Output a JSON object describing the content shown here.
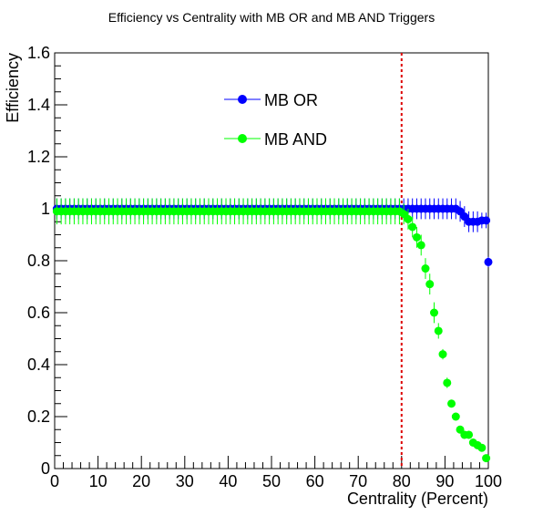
{
  "chart_data": {
    "type": "scatter",
    "title": "Efficiency vs Centrality with MB OR and MB AND Triggers",
    "xlabel": "Centrality (Percent)",
    "ylabel": "Efficiency",
    "xlim": [
      0,
      100
    ],
    "ylim": [
      0,
      1.6
    ],
    "x_ticks": [
      "0",
      "10",
      "20",
      "30",
      "40",
      "50",
      "60",
      "70",
      "80",
      "90",
      "100"
    ],
    "y_ticks": [
      "0",
      "0.2",
      "0.4",
      "0.6",
      "0.8",
      "1",
      "1.2",
      "1.4",
      "1.6"
    ],
    "grid": false,
    "legend_position": "top-center",
    "reference_line": {
      "x": 80,
      "color": "#dd0000",
      "style": "dotted"
    },
    "series": [
      {
        "name": "MB OR",
        "color": "#0000ff",
        "points": [
          [
            0.5,
            1.0,
            0.04
          ],
          [
            1.5,
            1.0,
            0.04
          ],
          [
            2.5,
            1.0,
            0.04
          ],
          [
            3.5,
            1.0,
            0.04
          ],
          [
            4.5,
            1.0,
            0.04
          ],
          [
            5.5,
            1.0,
            0.04
          ],
          [
            6.5,
            1.0,
            0.04
          ],
          [
            7.5,
            1.0,
            0.04
          ],
          [
            8.5,
            1.0,
            0.04
          ],
          [
            9.5,
            1.0,
            0.04
          ],
          [
            10.5,
            1.0,
            0.04
          ],
          [
            11.5,
            1.0,
            0.04
          ],
          [
            12.5,
            1.0,
            0.04
          ],
          [
            13.5,
            1.0,
            0.04
          ],
          [
            14.5,
            1.0,
            0.04
          ],
          [
            15.5,
            1.0,
            0.04
          ],
          [
            16.5,
            1.0,
            0.04
          ],
          [
            17.5,
            1.0,
            0.04
          ],
          [
            18.5,
            1.0,
            0.04
          ],
          [
            19.5,
            1.0,
            0.04
          ],
          [
            20.5,
            1.0,
            0.04
          ],
          [
            21.5,
            1.0,
            0.04
          ],
          [
            22.5,
            1.0,
            0.04
          ],
          [
            23.5,
            1.0,
            0.04
          ],
          [
            24.5,
            1.0,
            0.04
          ],
          [
            25.5,
            1.0,
            0.04
          ],
          [
            26.5,
            1.0,
            0.04
          ],
          [
            27.5,
            1.0,
            0.04
          ],
          [
            28.5,
            1.0,
            0.04
          ],
          [
            29.5,
            1.0,
            0.04
          ],
          [
            30.5,
            1.0,
            0.04
          ],
          [
            31.5,
            1.0,
            0.04
          ],
          [
            32.5,
            1.0,
            0.04
          ],
          [
            33.5,
            1.0,
            0.04
          ],
          [
            34.5,
            1.0,
            0.04
          ],
          [
            35.5,
            1.0,
            0.04
          ],
          [
            36.5,
            1.0,
            0.04
          ],
          [
            37.5,
            1.0,
            0.04
          ],
          [
            38.5,
            1.0,
            0.04
          ],
          [
            39.5,
            1.0,
            0.04
          ],
          [
            40.5,
            1.0,
            0.04
          ],
          [
            41.5,
            1.0,
            0.04
          ],
          [
            42.5,
            1.0,
            0.04
          ],
          [
            43.5,
            1.0,
            0.04
          ],
          [
            44.5,
            1.0,
            0.04
          ],
          [
            45.5,
            1.0,
            0.04
          ],
          [
            46.5,
            1.0,
            0.04
          ],
          [
            47.5,
            1.0,
            0.04
          ],
          [
            48.5,
            1.0,
            0.04
          ],
          [
            49.5,
            1.0,
            0.04
          ],
          [
            50.5,
            1.0,
            0.04
          ],
          [
            51.5,
            1.0,
            0.04
          ],
          [
            52.5,
            1.0,
            0.04
          ],
          [
            53.5,
            1.0,
            0.04
          ],
          [
            54.5,
            1.0,
            0.04
          ],
          [
            55.5,
            1.0,
            0.04
          ],
          [
            56.5,
            1.0,
            0.04
          ],
          [
            57.5,
            1.0,
            0.04
          ],
          [
            58.5,
            1.0,
            0.04
          ],
          [
            59.5,
            1.0,
            0.04
          ],
          [
            60.5,
            1.0,
            0.04
          ],
          [
            61.5,
            1.0,
            0.04
          ],
          [
            62.5,
            1.0,
            0.04
          ],
          [
            63.5,
            1.0,
            0.04
          ],
          [
            64.5,
            1.0,
            0.04
          ],
          [
            65.5,
            1.0,
            0.04
          ],
          [
            66.5,
            1.0,
            0.04
          ],
          [
            67.5,
            1.0,
            0.04
          ],
          [
            68.5,
            1.0,
            0.04
          ],
          [
            69.5,
            1.0,
            0.04
          ],
          [
            70.5,
            1.0,
            0.04
          ],
          [
            71.5,
            1.0,
            0.04
          ],
          [
            72.5,
            1.0,
            0.04
          ],
          [
            73.5,
            1.0,
            0.04
          ],
          [
            74.5,
            1.0,
            0.04
          ],
          [
            75.5,
            1.0,
            0.04
          ],
          [
            76.5,
            1.0,
            0.04
          ],
          [
            77.5,
            1.0,
            0.04
          ],
          [
            78.5,
            1.0,
            0.04
          ],
          [
            79.5,
            1.0,
            0.04
          ],
          [
            80.5,
            1.0,
            0.04
          ],
          [
            81.5,
            1.0,
            0.04
          ],
          [
            82.5,
            1.0,
            0.04
          ],
          [
            83.5,
            1.0,
            0.04
          ],
          [
            84.5,
            1.0,
            0.04
          ],
          [
            85.5,
            1.0,
            0.04
          ],
          [
            86.5,
            1.0,
            0.04
          ],
          [
            87.5,
            1.0,
            0.04
          ],
          [
            88.5,
            1.0,
            0.04
          ],
          [
            89.5,
            1.0,
            0.04
          ],
          [
            90.5,
            1.0,
            0.04
          ],
          [
            91.5,
            1.0,
            0.04
          ],
          [
            92.5,
            1.0,
            0.04
          ],
          [
            93.5,
            0.99,
            0.04
          ],
          [
            94.5,
            0.97,
            0.04
          ],
          [
            95.5,
            0.95,
            0.04
          ],
          [
            96.5,
            0.95,
            0.04
          ],
          [
            97.5,
            0.95,
            0.04
          ],
          [
            98.5,
            0.955,
            0.03
          ],
          [
            99.5,
            0.955,
            0.03
          ],
          [
            100,
            0.795,
            0.02
          ]
        ]
      },
      {
        "name": "MB AND",
        "color": "#00ff00",
        "points": [
          [
            0.5,
            0.99,
            0.05
          ],
          [
            1.5,
            0.99,
            0.05
          ],
          [
            2.5,
            0.99,
            0.05
          ],
          [
            3.5,
            0.99,
            0.05
          ],
          [
            4.5,
            0.99,
            0.05
          ],
          [
            5.5,
            0.99,
            0.05
          ],
          [
            6.5,
            0.99,
            0.05
          ],
          [
            7.5,
            0.99,
            0.05
          ],
          [
            8.5,
            0.99,
            0.05
          ],
          [
            9.5,
            0.99,
            0.05
          ],
          [
            10.5,
            0.99,
            0.05
          ],
          [
            11.5,
            0.99,
            0.05
          ],
          [
            12.5,
            0.99,
            0.05
          ],
          [
            13.5,
            0.99,
            0.05
          ],
          [
            14.5,
            0.99,
            0.05
          ],
          [
            15.5,
            0.99,
            0.05
          ],
          [
            16.5,
            0.99,
            0.05
          ],
          [
            17.5,
            0.99,
            0.05
          ],
          [
            18.5,
            0.99,
            0.05
          ],
          [
            19.5,
            0.99,
            0.05
          ],
          [
            20.5,
            0.99,
            0.05
          ],
          [
            21.5,
            0.99,
            0.05
          ],
          [
            22.5,
            0.99,
            0.05
          ],
          [
            23.5,
            0.99,
            0.05
          ],
          [
            24.5,
            0.99,
            0.05
          ],
          [
            25.5,
            0.99,
            0.05
          ],
          [
            26.5,
            0.99,
            0.05
          ],
          [
            27.5,
            0.99,
            0.05
          ],
          [
            28.5,
            0.99,
            0.05
          ],
          [
            29.5,
            0.99,
            0.05
          ],
          [
            30.5,
            0.99,
            0.05
          ],
          [
            31.5,
            0.99,
            0.05
          ],
          [
            32.5,
            0.99,
            0.05
          ],
          [
            33.5,
            0.99,
            0.05
          ],
          [
            34.5,
            0.99,
            0.05
          ],
          [
            35.5,
            0.99,
            0.05
          ],
          [
            36.5,
            0.99,
            0.05
          ],
          [
            37.5,
            0.99,
            0.05
          ],
          [
            38.5,
            0.99,
            0.05
          ],
          [
            39.5,
            0.99,
            0.05
          ],
          [
            40.5,
            0.99,
            0.05
          ],
          [
            41.5,
            0.99,
            0.05
          ],
          [
            42.5,
            0.99,
            0.05
          ],
          [
            43.5,
            0.99,
            0.05
          ],
          [
            44.5,
            0.99,
            0.05
          ],
          [
            45.5,
            0.99,
            0.05
          ],
          [
            46.5,
            0.99,
            0.05
          ],
          [
            47.5,
            0.99,
            0.05
          ],
          [
            48.5,
            0.99,
            0.05
          ],
          [
            49.5,
            0.99,
            0.05
          ],
          [
            50.5,
            0.99,
            0.05
          ],
          [
            51.5,
            0.99,
            0.05
          ],
          [
            52.5,
            0.99,
            0.05
          ],
          [
            53.5,
            0.99,
            0.05
          ],
          [
            54.5,
            0.99,
            0.05
          ],
          [
            55.5,
            0.99,
            0.05
          ],
          [
            56.5,
            0.99,
            0.05
          ],
          [
            57.5,
            0.99,
            0.05
          ],
          [
            58.5,
            0.99,
            0.05
          ],
          [
            59.5,
            0.99,
            0.05
          ],
          [
            60.5,
            0.99,
            0.05
          ],
          [
            61.5,
            0.99,
            0.05
          ],
          [
            62.5,
            0.99,
            0.05
          ],
          [
            63.5,
            0.99,
            0.05
          ],
          [
            64.5,
            0.99,
            0.05
          ],
          [
            65.5,
            0.99,
            0.05
          ],
          [
            66.5,
            0.99,
            0.05
          ],
          [
            67.5,
            0.99,
            0.05
          ],
          [
            68.5,
            0.99,
            0.05
          ],
          [
            69.5,
            0.99,
            0.05
          ],
          [
            70.5,
            0.99,
            0.05
          ],
          [
            71.5,
            0.99,
            0.05
          ],
          [
            72.5,
            0.99,
            0.05
          ],
          [
            73.5,
            0.99,
            0.05
          ],
          [
            74.5,
            0.99,
            0.05
          ],
          [
            75.5,
            0.99,
            0.05
          ],
          [
            76.5,
            0.99,
            0.05
          ],
          [
            77.5,
            0.99,
            0.05
          ],
          [
            78.5,
            0.99,
            0.05
          ],
          [
            79.5,
            0.99,
            0.05
          ],
          [
            80.5,
            0.98,
            0.04
          ],
          [
            81.5,
            0.96,
            0.04
          ],
          [
            82.5,
            0.93,
            0.04
          ],
          [
            83.5,
            0.89,
            0.04
          ],
          [
            84.5,
            0.86,
            0.04
          ],
          [
            85.5,
            0.77,
            0.04
          ],
          [
            86.5,
            0.71,
            0.04
          ],
          [
            87.5,
            0.6,
            0.04
          ],
          [
            88.5,
            0.53,
            0.03
          ],
          [
            89.5,
            0.44,
            0.02
          ],
          [
            90.5,
            0.33,
            0.02
          ],
          [
            91.5,
            0.25,
            0.015
          ],
          [
            92.5,
            0.2,
            0.015
          ],
          [
            93.5,
            0.15,
            0.015
          ],
          [
            94.5,
            0.13,
            0.015
          ],
          [
            95.5,
            0.13,
            0.015
          ],
          [
            96.5,
            0.1,
            0.015
          ],
          [
            97.5,
            0.09,
            0.015
          ],
          [
            98.5,
            0.08,
            0.015
          ],
          [
            99.5,
            0.04,
            0.01
          ]
        ]
      }
    ]
  }
}
